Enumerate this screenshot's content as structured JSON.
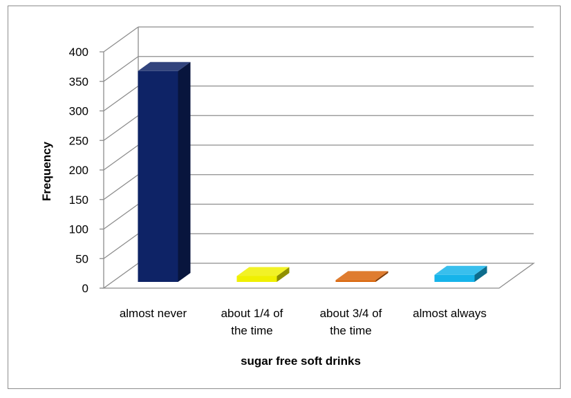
{
  "chart_data": {
    "type": "bar",
    "title": "",
    "xlabel": "sugar free soft drinks",
    "ylabel": "Frequency",
    "ylim": [
      0,
      400
    ],
    "yticks": [
      0,
      50,
      100,
      150,
      200,
      250,
      300,
      350,
      400
    ],
    "grid": true,
    "style": "3d-column",
    "categories": [
      "almost never",
      "about 1/4 of the time",
      "about 3/4 of the time",
      "almost always"
    ],
    "category_lines": [
      [
        "almost never"
      ],
      [
        "about 1/4 of",
        "the time"
      ],
      [
        "about 3/4 of",
        "the time"
      ],
      [
        "almost always"
      ]
    ],
    "values": [
      357,
      10,
      3,
      12
    ],
    "colors": [
      "#0e2366",
      "#f0f000",
      "#d9650a",
      "#16b4ea"
    ]
  }
}
